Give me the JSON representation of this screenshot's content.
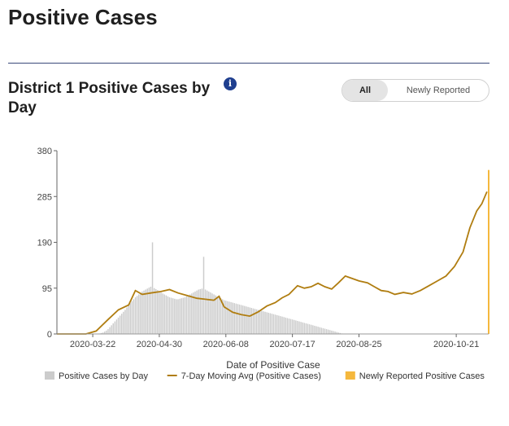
{
  "page": {
    "title": "Positive Cases",
    "section_title": "District 1 Positive Cases by Day",
    "info_icon": "info-icon",
    "toggle": {
      "all_label": "All",
      "newly_label": "Newly Reported",
      "selected": "All"
    }
  },
  "colors": {
    "bars": "#cccccc",
    "moving_avg": "#b07d10",
    "newly_reported": "#f5b83d",
    "divider": "#3a4a7a"
  },
  "chart_data": {
    "type": "bar",
    "title": "",
    "xlabel": "Date of Positive Case",
    "ylabel": "",
    "ylim": [
      0,
      380
    ],
    "yticks": [
      0,
      95,
      190,
      285,
      380
    ],
    "x_start": "2020-03-01",
    "x_end": "2020-11-09",
    "xticks": [
      "2020-03-22",
      "2020-04-30",
      "2020-06-08",
      "2020-07-17",
      "2020-08-25",
      "2020-10-21"
    ],
    "legend": [
      "Positive Cases by Day",
      "7-Day Moving Avg (Positive Cases)",
      "Newly Reported Positive Cases"
    ],
    "legend_position": "bottom",
    "series": [
      {
        "name": "Positive Cases by Day",
        "type": "bar",
        "values": [
          0,
          0,
          0,
          0,
          0,
          0,
          0,
          0,
          0,
          0,
          0,
          0,
          0,
          0,
          0,
          0,
          0,
          0,
          0,
          0,
          0,
          0,
          0,
          0,
          0,
          1,
          2,
          3,
          5,
          7,
          10,
          14,
          18,
          22,
          26,
          30,
          34,
          38,
          42,
          46,
          50,
          55,
          60,
          64,
          68,
          72,
          76,
          79,
          82,
          85,
          88,
          90,
          92,
          94,
          96,
          98,
          190,
          95,
          93,
          91,
          88,
          86,
          84,
          82,
          80,
          78,
          76,
          75,
          74,
          73,
          72,
          72,
          73,
          74,
          75,
          76,
          78,
          80,
          82,
          84,
          86,
          88,
          90,
          92,
          93,
          94,
          160,
          92,
          90,
          88,
          86,
          84,
          82,
          80,
          78,
          76,
          74,
          72,
          70,
          69,
          68,
          67,
          66,
          65,
          64,
          63,
          62,
          61,
          60,
          59,
          58,
          57,
          56,
          55,
          54,
          53,
          52,
          51,
          50,
          49,
          48,
          47,
          46,
          45,
          44,
          43,
          42,
          41,
          40,
          39,
          38,
          37,
          36,
          35,
          34,
          33,
          32,
          31,
          30,
          29,
          28,
          27,
          26,
          25,
          24,
          23,
          22,
          21,
          20,
          19,
          18,
          17,
          16,
          15,
          14,
          13,
          12,
          11,
          10,
          9,
          8,
          7,
          6,
          5,
          4,
          3,
          2,
          1,
          0,
          0,
          0,
          0,
          0,
          0,
          0,
          0,
          0,
          0,
          0,
          0,
          0,
          0,
          0,
          0,
          0,
          0,
          0,
          0,
          0,
          0,
          0,
          0,
          0,
          0,
          0,
          0,
          0,
          0,
          0,
          0,
          0,
          0,
          0,
          0,
          0,
          0,
          0,
          0,
          0,
          0,
          0,
          0,
          0,
          0,
          0,
          0,
          0,
          0,
          0,
          0,
          0,
          0,
          0,
          0,
          0,
          0,
          0,
          0,
          0,
          0,
          0,
          0,
          0,
          0,
          0,
          0,
          0,
          0,
          0,
          0,
          0,
          0,
          0,
          0,
          0,
          0,
          0,
          0,
          0,
          0,
          0,
          0,
          0,
          0,
          0,
          0,
          0,
          0,
          0,
          0,
          0,
          0,
          0,
          0,
          0,
          0,
          0,
          0,
          0,
          0,
          0,
          0,
          0
        ]
      },
      {
        "name": "7-Day Moving Avg (Positive Cases)",
        "type": "line",
        "points": [
          [
            "2020-03-01",
            0
          ],
          [
            "2020-03-18",
            0
          ],
          [
            "2020-03-24",
            6
          ],
          [
            "2020-03-31",
            30
          ],
          [
            "2020-04-06",
            50
          ],
          [
            "2020-04-12",
            60
          ],
          [
            "2020-04-16",
            90
          ],
          [
            "2020-04-20",
            82
          ],
          [
            "2020-04-25",
            85
          ],
          [
            "2020-05-01",
            88
          ],
          [
            "2020-05-06",
            92
          ],
          [
            "2020-05-11",
            85
          ],
          [
            "2020-05-16",
            80
          ],
          [
            "2020-05-22",
            74
          ],
          [
            "2020-05-27",
            72
          ],
          [
            "2020-06-01",
            70
          ],
          [
            "2020-06-04",
            78
          ],
          [
            "2020-06-07",
            56
          ],
          [
            "2020-06-12",
            45
          ],
          [
            "2020-06-17",
            40
          ],
          [
            "2020-06-22",
            37
          ],
          [
            "2020-06-27",
            46
          ],
          [
            "2020-07-02",
            58
          ],
          [
            "2020-07-07",
            65
          ],
          [
            "2020-07-11",
            75
          ],
          [
            "2020-07-15",
            82
          ],
          [
            "2020-07-20",
            100
          ],
          [
            "2020-07-24",
            95
          ],
          [
            "2020-07-28",
            98
          ],
          [
            "2020-08-01",
            105
          ],
          [
            "2020-08-05",
            98
          ],
          [
            "2020-08-09",
            93
          ],
          [
            "2020-08-13",
            106
          ],
          [
            "2020-08-17",
            120
          ],
          [
            "2020-08-21",
            115
          ],
          [
            "2020-08-25",
            110
          ],
          [
            "2020-08-30",
            106
          ],
          [
            "2020-09-03",
            98
          ],
          [
            "2020-09-07",
            90
          ],
          [
            "2020-09-11",
            88
          ],
          [
            "2020-09-15",
            82
          ],
          [
            "2020-09-20",
            86
          ],
          [
            "2020-09-25",
            83
          ],
          [
            "2020-09-30",
            90
          ],
          [
            "2020-10-05",
            100
          ],
          [
            "2020-10-10",
            110
          ],
          [
            "2020-10-15",
            120
          ],
          [
            "2020-10-20",
            140
          ],
          [
            "2020-10-25",
            170
          ],
          [
            "2020-10-29",
            220
          ],
          [
            "2020-11-02",
            255
          ],
          [
            "2020-11-05",
            270
          ],
          [
            "2020-11-08",
            295
          ]
        ]
      },
      {
        "name": "Newly Reported Positive Cases",
        "type": "bar",
        "points": [
          [
            "2020-11-09",
            340
          ]
        ]
      }
    ]
  }
}
